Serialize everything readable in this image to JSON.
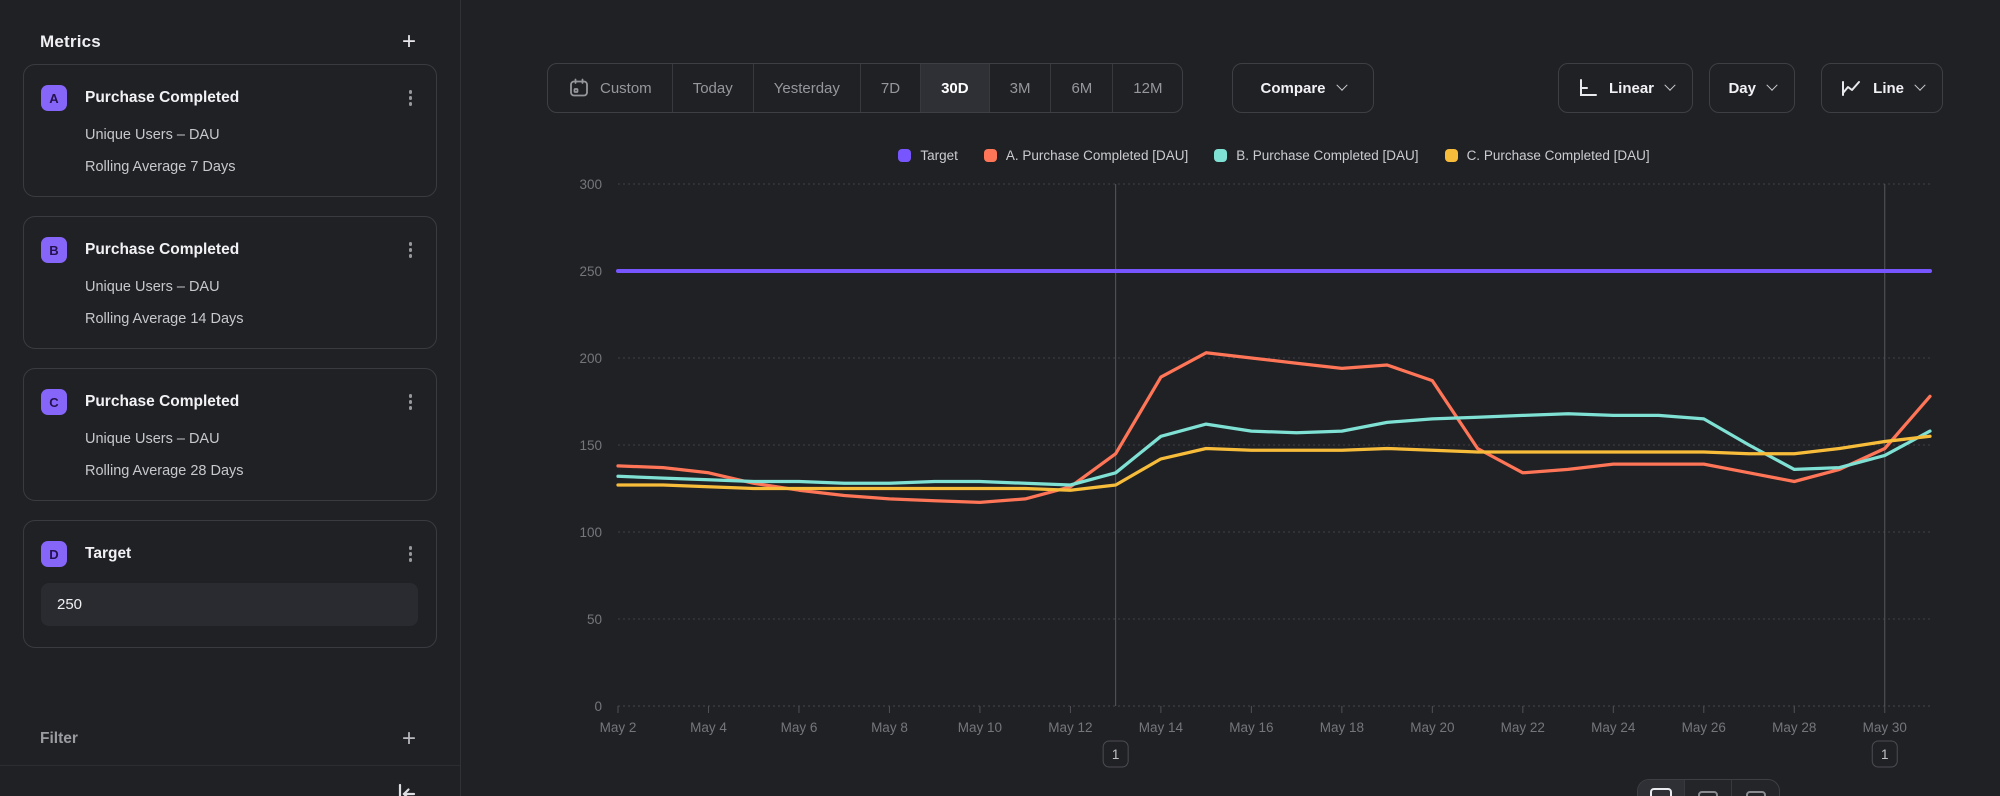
{
  "sidebar": {
    "title": "Metrics",
    "add_metric_label": "+",
    "metrics": [
      {
        "badge": "A",
        "title": "Purchase Completed",
        "line1": "Unique Users – DAU",
        "line2": "Rolling Average 7 Days"
      },
      {
        "badge": "B",
        "title": "Purchase Completed",
        "line1": "Unique Users – DAU",
        "line2": "Rolling Average 14 Days"
      },
      {
        "badge": "C",
        "title": "Purchase Completed",
        "line1": "Unique Users – DAU",
        "line2": "Rolling Average 28 Days"
      },
      {
        "badge": "D",
        "title": "Target",
        "input_value": "250"
      }
    ],
    "filter": {
      "label": "Filter",
      "add_label": "+"
    }
  },
  "toolbar": {
    "ranges": [
      "Custom",
      "Today",
      "Yesterday",
      "7D",
      "30D",
      "3M",
      "6M",
      "12M"
    ],
    "selected_range": "30D",
    "compare_label": "Compare",
    "scale_label": "Linear",
    "granularity_label": "Day",
    "chart_type_label": "Line"
  },
  "colors": {
    "target": "#7856ff",
    "series_a": "#ff7557",
    "series_b": "#7fe0d4",
    "series_c": "#f8bc3b",
    "badge_bg": "#8566f8",
    "gridline": "#45464c",
    "axis_text": "#75767c",
    "annotation_line": "#56575d"
  },
  "chart_data": {
    "type": "line",
    "x": [
      "May 2",
      "May 3",
      "May 4",
      "May 5",
      "May 6",
      "May 7",
      "May 8",
      "May 9",
      "May 10",
      "May 11",
      "May 12",
      "May 13",
      "May 14",
      "May 15",
      "May 16",
      "May 17",
      "May 18",
      "May 19",
      "May 20",
      "May 21",
      "May 22",
      "May 23",
      "May 24",
      "May 25",
      "May 26",
      "May 27",
      "May 28",
      "May 29",
      "May 30",
      "May 31"
    ],
    "x_tick_every": 2,
    "ylim": [
      0,
      300
    ],
    "yticks": [
      0,
      50,
      100,
      150,
      200,
      250,
      300
    ],
    "grid": true,
    "legend_position": "top",
    "series": [
      {
        "name": "Target",
        "color": "#7856ff",
        "values": [
          250,
          250,
          250,
          250,
          250,
          250,
          250,
          250,
          250,
          250,
          250,
          250,
          250,
          250,
          250,
          250,
          250,
          250,
          250,
          250,
          250,
          250,
          250,
          250,
          250,
          250,
          250,
          250,
          250,
          250
        ]
      },
      {
        "name": "A. Purchase Completed [DAU]",
        "color": "#ff7557",
        "values": [
          138,
          137,
          134,
          128,
          124,
          121,
          119,
          118,
          117,
          119,
          126,
          145,
          189,
          203,
          200,
          197,
          194,
          196,
          187,
          148,
          134,
          136,
          139,
          139,
          139,
          134,
          129,
          136,
          148,
          178
        ]
      },
      {
        "name": "B. Purchase Completed [DAU]",
        "color": "#7fe0d4",
        "values": [
          132,
          131,
          130,
          129,
          129,
          128,
          128,
          129,
          129,
          128,
          127,
          134,
          155,
          162,
          158,
          157,
          158,
          163,
          165,
          166,
          167,
          168,
          167,
          167,
          165,
          150,
          136,
          137,
          144,
          158
        ]
      },
      {
        "name": "C. Purchase Completed [DAU]",
        "color": "#f8bc3b",
        "values": [
          127,
          127,
          126,
          125,
          125,
          125,
          125,
          125,
          125,
          125,
          124,
          127,
          142,
          148,
          147,
          147,
          147,
          148,
          147,
          146,
          146,
          146,
          146,
          146,
          146,
          145,
          145,
          148,
          152,
          155
        ]
      }
    ],
    "annotations": [
      {
        "x_label": "May 13",
        "label": "1"
      },
      {
        "x_label": "May 30",
        "label": "1"
      }
    ]
  },
  "bottom_toolbar": {
    "segments": [
      "chart-view",
      "table-view",
      "split-view"
    ],
    "selected_index": 0
  }
}
